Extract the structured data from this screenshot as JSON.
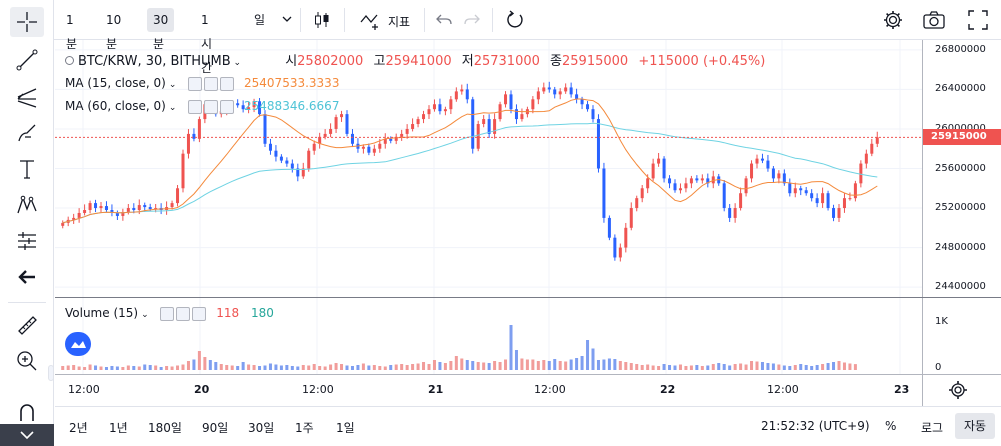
{
  "toolbar": {
    "timeframes": [
      "1분",
      "10분",
      "30분",
      "1시간",
      "일"
    ],
    "active_timeframe": "30분",
    "indicator_label": "지표"
  },
  "legend": {
    "symbol": "BTC/KRW, 30, BITHUMB",
    "open_label": "시",
    "open": "25802000",
    "high_label": "고",
    "high": "25941000",
    "low_label": "저",
    "low": "25731000",
    "close_label": "종",
    "close": "25915000",
    "change": "+115000 (+0.45%)",
    "ma15_label": "MA (15, close, 0)",
    "ma15_value": "25407533.3333",
    "ma60_label": "MA (60, close, 0)",
    "ma60_value": "25488346.6667",
    "volume_label": "Volume (15)",
    "vol_red": "118",
    "vol_green": "180"
  },
  "price_axis": {
    "ticks": [
      "26800000",
      "26400000",
      "26000000",
      "25600000",
      "25200000",
      "24800000",
      "24400000"
    ],
    "current": "25915000"
  },
  "volume_axis": {
    "ticks": [
      "1K",
      "0"
    ]
  },
  "time_axis": {
    "ticks": [
      "12:00",
      "20",
      "12:00",
      "21",
      "12:00",
      "22",
      "12:00",
      "23"
    ]
  },
  "bottom": {
    "ranges": [
      "2년",
      "1년",
      "180일",
      "90일",
      "30일",
      "1주",
      "1일"
    ],
    "clock": "21:52:32 (UTC+9)",
    "percent": "%",
    "log": "로그",
    "auto": "자동"
  },
  "colors": {
    "up": "#ef5350",
    "down": "#2962ff",
    "ma15": "#f48a3c",
    "ma60": "#6fd3e3"
  },
  "chart_data": {
    "type": "candlestick",
    "y_range": [
      24300000,
      26900000
    ],
    "close_series": [
      25050000,
      25080000,
      25100000,
      25150000,
      25180000,
      25250000,
      25200000,
      25220000,
      25180000,
      25150000,
      25120000,
      25160000,
      25200000,
      25180000,
      25230000,
      25210000,
      25190000,
      25200000,
      25180000,
      25210000,
      25250000,
      25400000,
      25750000,
      25950000,
      25900000,
      26100000,
      26250000,
      26200000,
      26150000,
      26180000,
      26220000,
      26260000,
      26240000,
      26200000,
      26220000,
      26280000,
      26150000,
      25850000,
      25780000,
      25720000,
      25680000,
      25650000,
      25600000,
      25520000,
      25600000,
      25780000,
      25850000,
      25920000,
      25950000,
      26000000,
      26120000,
      26150000,
      25950000,
      25850000,
      25800000,
      25820000,
      25760000,
      25800000,
      25850000,
      25900000,
      25880000,
      25920000,
      25950000,
      26000000,
      26050000,
      26100000,
      26150000,
      26200000,
      26250000,
      26180000,
      26200000,
      26300000,
      26380000,
      26400000,
      26300000,
      25800000,
      26050000,
      26100000,
      25950000,
      26100000,
      26250000,
      26350000,
      26200000,
      26100000,
      26150000,
      26200000,
      26300000,
      26380000,
      26420000,
      26400000,
      26350000,
      26380000,
      26420000,
      26350000,
      26300000,
      26250000,
      26200000,
      26100000,
      25600000,
      25100000,
      24900000,
      24700000,
      24800000,
      25000000,
      25200000,
      25300000,
      25400000,
      25500000,
      25650000,
      25700000,
      25500000,
      25450000,
      25380000,
      25400000,
      25450000,
      25500000,
      25480000,
      25500000,
      25450000,
      25520000,
      25450000,
      25200000,
      25100000,
      25200000,
      25350000,
      25500000,
      25650000,
      25700000,
      25680000,
      25600000,
      25500000,
      25550000,
      25450000,
      25350000,
      25400000,
      25380000,
      25350000,
      25300000,
      25250000,
      25350000,
      25200000,
      25100000,
      25200000,
      25300000,
      25300000,
      25450000,
      25650000,
      25750000,
      25850000,
      25915000
    ],
    "volume_series_approx": [
      80,
      90,
      100,
      70,
      60,
      110,
      90,
      70,
      60,
      80,
      70,
      60,
      90,
      80,
      70,
      110,
      100,
      90,
      60,
      80,
      70,
      90,
      110,
      180,
      210,
      380,
      260,
      200,
      160,
      120,
      100,
      90,
      80,
      160,
      110,
      100,
      80,
      90,
      130,
      110,
      90,
      100,
      80,
      70,
      100,
      90,
      120,
      80,
      70,
      110,
      140,
      120,
      90,
      80,
      100,
      130,
      90,
      100,
      80,
      70,
      100,
      110,
      120,
      100,
      120,
      130,
      160,
      120,
      200,
      160,
      140,
      180,
      280,
      230,
      200,
      180,
      160,
      150,
      140,
      180,
      160,
      210,
      900,
      400,
      230,
      210,
      210,
      180,
      200,
      180,
      220,
      180,
      170,
      210,
      240,
      280,
      600,
      430,
      200,
      210,
      230,
      220,
      180,
      160,
      140,
      120,
      100,
      110,
      90,
      80,
      120,
      100,
      90,
      110,
      80,
      90,
      100,
      80,
      90,
      120,
      140,
      120,
      90,
      120,
      130,
      110,
      180,
      170,
      160,
      140,
      130,
      110,
      90,
      80,
      100,
      120,
      100,
      80,
      100,
      120,
      140,
      160,
      180,
      150,
      130,
      118
    ]
  }
}
